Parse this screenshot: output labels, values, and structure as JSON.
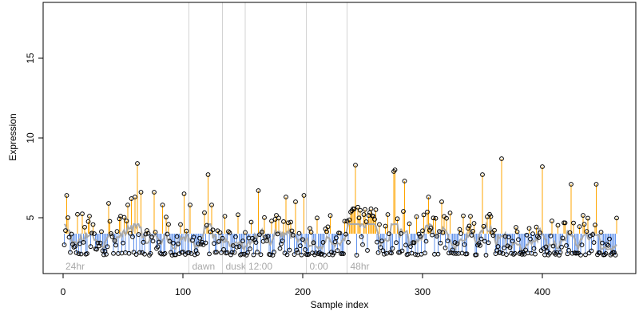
{
  "chart_data": {
    "type": "scatter",
    "title": "",
    "xlabel": "Sample index",
    "ylabel": "Expression",
    "xlim": [
      0,
      480
    ],
    "ylim": [
      1.6,
      18.8
    ],
    "x_ticks": [
      0,
      100,
      200,
      300,
      400
    ],
    "y_ticks": [
      5,
      10,
      15
    ],
    "baseline_value": 4.0,
    "grid": false,
    "colors": {
      "above_baseline": "#FFA500",
      "below_baseline": "#6495ED",
      "smooth_line": "#A9A9A9",
      "markers": "#000000",
      "period_lines": "#D3D3D3",
      "period_labels": "#A9A9A9"
    },
    "periods": [
      {
        "label": "24hr",
        "start": 0
      },
      {
        "label": "dawn",
        "start": 105
      },
      {
        "label": "dusk",
        "start": 133
      },
      {
        "label": "12:00",
        "start": 152
      },
      {
        "label": "0:00",
        "start": 203
      },
      {
        "label": "48hr",
        "start": 237
      }
    ],
    "series": [
      {
        "name": "",
        "points_highlighted": [
          [
            3,
            6.4
          ],
          [
            3.5,
            5.0
          ],
          [
            22,
            5.1
          ],
          [
            38,
            5.9
          ],
          [
            48,
            5.1
          ],
          [
            54,
            5.8
          ],
          [
            57,
            6.2
          ],
          [
            60,
            6.3
          ],
          [
            62,
            8.4
          ],
          [
            65,
            6.6
          ],
          [
            76,
            6.6
          ],
          [
            83,
            5.8
          ],
          [
            101,
            6.5
          ],
          [
            106,
            5.8
          ],
          [
            121,
            7.7
          ],
          [
            124,
            5.8
          ],
          [
            163,
            6.7
          ],
          [
            186,
            6.3
          ],
          [
            194,
            6.0
          ],
          [
            201,
            6.4
          ],
          [
            244,
            8.3
          ],
          [
            285,
            7.3
          ],
          [
            276,
            7.9
          ],
          [
            277,
            8.0
          ],
          [
            305,
            6.3
          ],
          [
            316,
            6.0
          ],
          [
            350,
            7.7
          ],
          [
            366,
            8.7
          ],
          [
            400,
            8.2
          ],
          [
            424,
            7.1
          ],
          [
            445,
            7.1
          ]
        ]
      }
    ]
  }
}
